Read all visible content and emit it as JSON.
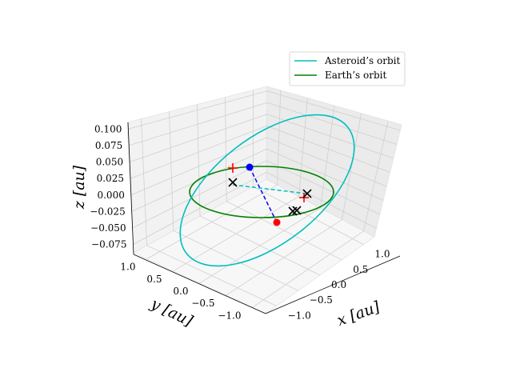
{
  "chart_data": {
    "type": "3d-line",
    "legend": {
      "placement": "upper-right",
      "entries": [
        {
          "label": "Asteroid’s orbit",
          "color": "#00bfbf"
        },
        {
          "label": "Earth’s orbit",
          "color": "#008000"
        }
      ]
    },
    "axes": {
      "x": {
        "label": "x [au]",
        "ticks": [
          "−1.0",
          "−0.5",
          "0.0",
          "0.5",
          "1.0"
        ],
        "tick_values": [
          -1.0,
          -0.5,
          0.0,
          0.5,
          1.0
        ],
        "lim": [
          -1.25,
          1.25
        ]
      },
      "y": {
        "label": "y [au]",
        "ticks": [
          "−1.0",
          "−0.5",
          "0.0",
          "0.5",
          "1.0"
        ],
        "tick_values": [
          -1.0,
          -0.5,
          0.0,
          0.5,
          1.0
        ],
        "lim": [
          -1.25,
          1.25
        ]
      },
      "z": {
        "label": "z [au]",
        "ticks": [
          "−0.075",
          "−0.050",
          "−0.025",
          "0.000",
          "0.025",
          "0.050",
          "0.075",
          "0.100"
        ],
        "tick_values": [
          -0.075,
          -0.05,
          -0.025,
          0.0,
          0.025,
          0.05,
          0.075,
          0.1
        ],
        "lim": [
          -0.09,
          0.11
        ]
      },
      "grid": true
    },
    "series": [
      {
        "key": "asteroid_orbit",
        "kind": "ellipse",
        "color": "#00bfbf",
        "semi_major": 1.18,
        "eccentricity": 0.17,
        "inclination_deg": 5.2,
        "node_deg": 120
      },
      {
        "key": "earth_orbit",
        "kind": "circle",
        "color": "#008000",
        "radius": 1.0
      }
    ],
    "markers": {
      "blue_point": {
        "color": "#0000ff",
        "shape": "circle",
        "position": [
          -0.7,
          0.3,
          0.04
        ]
      },
      "red_point": {
        "color": "#ff0000",
        "shape": "circle",
        "position": [
          -0.2,
          -0.95,
          -0.04
        ]
      },
      "plus_marks": {
        "color": "#ff0000",
        "shape": "plus",
        "positions": [
          [
            -0.75,
            0.7,
            0.04
          ],
          [
            0.9,
            0.3,
            0.0
          ]
        ]
      },
      "x_marks": {
        "color": "#000000",
        "shape": "x",
        "positions": [
          [
            -0.95,
            0.45,
            0.0
          ],
          [
            0.8,
            0.2,
            0.0
          ],
          [
            0.3,
            -0.8,
            -0.02
          ],
          [
            0.35,
            -0.75,
            -0.02
          ]
        ]
      },
      "dashed_lines": [
        {
          "color": "#0000ff",
          "from": "blue_point",
          "to": "red_point"
        },
        {
          "color": "#00bfbf",
          "from": [
            -0.95,
            0.45,
            0.0
          ],
          "to": [
            0.8,
            0.2,
            0.0
          ]
        }
      ]
    }
  }
}
